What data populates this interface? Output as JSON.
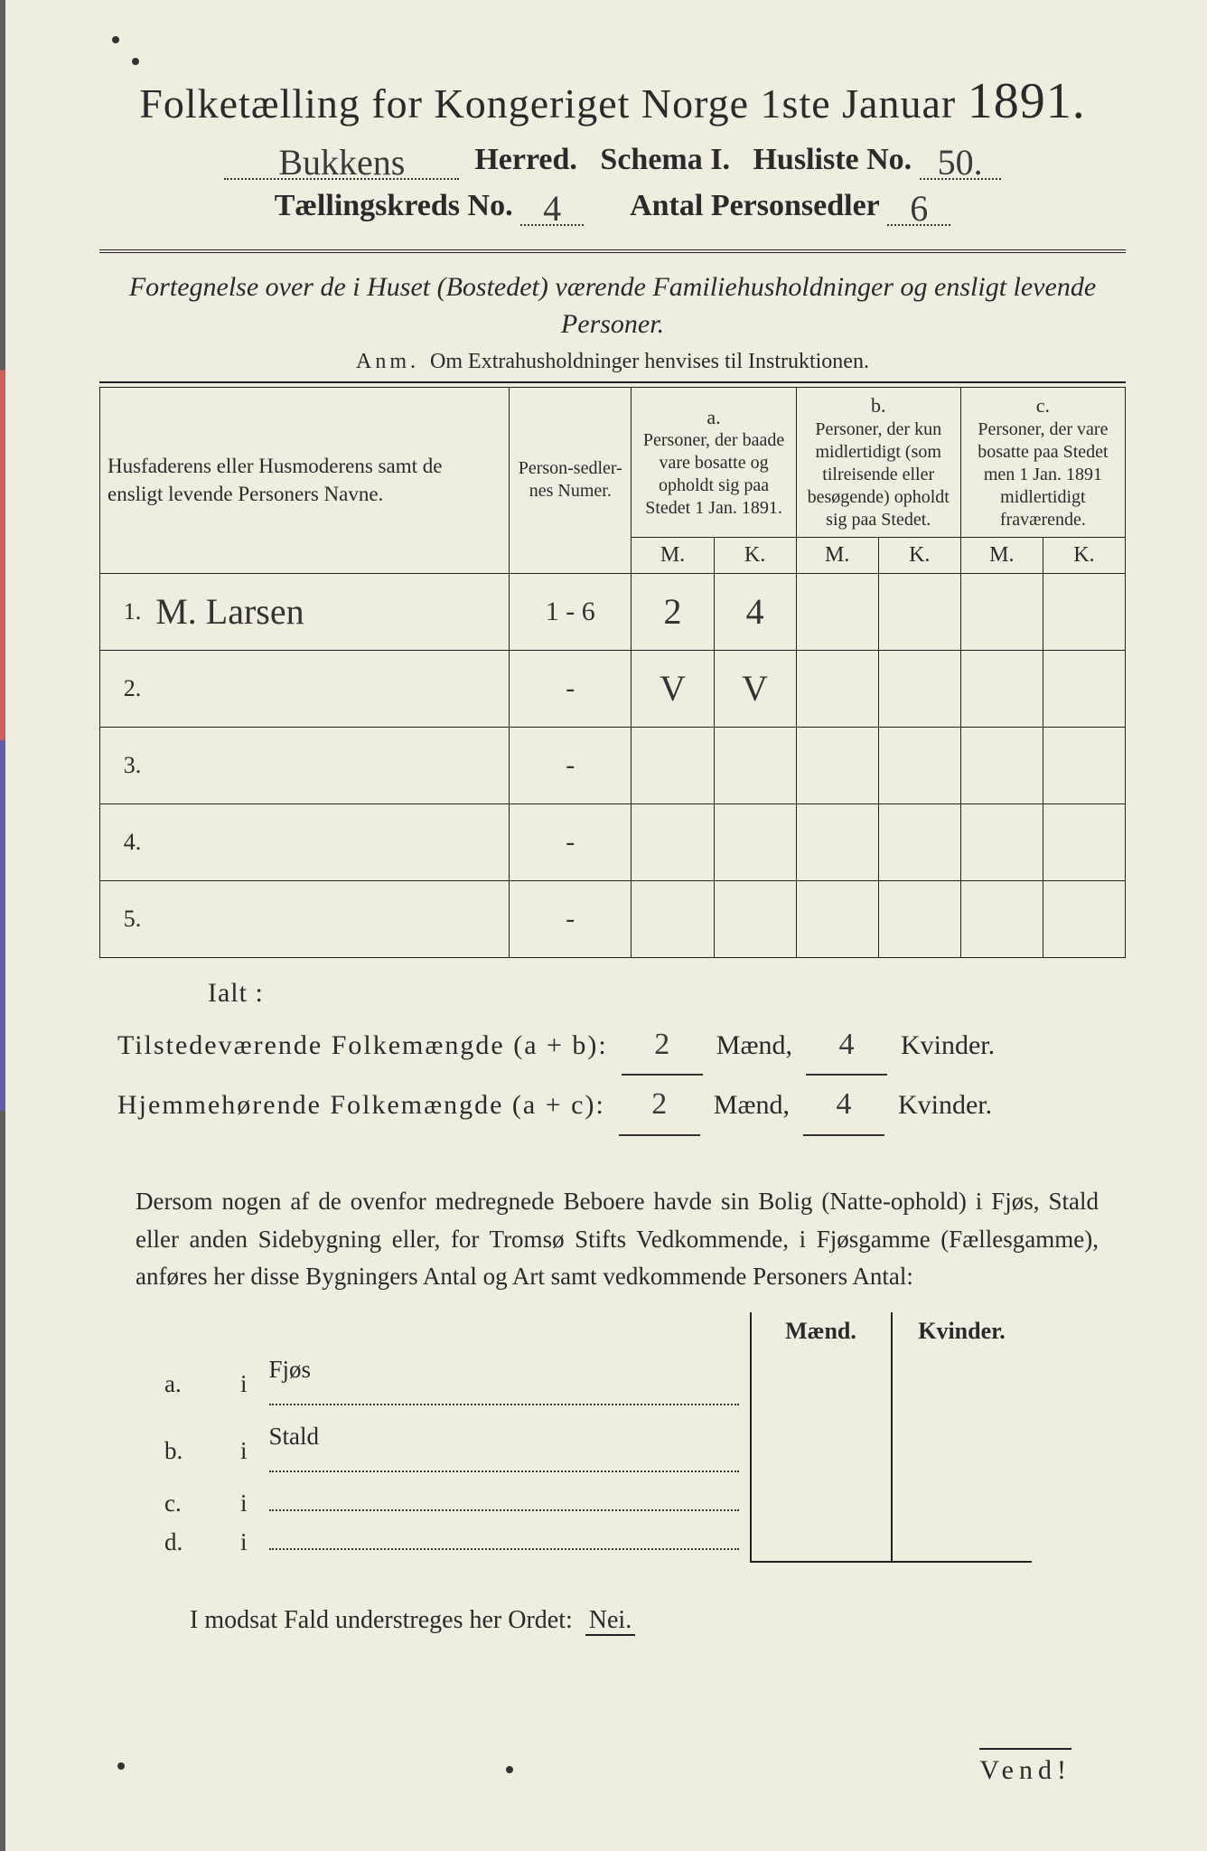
{
  "title_main": "Folketælling for Kongeriget Norge 1ste Januar",
  "title_year": "1891.",
  "herred_value": "Bukkens",
  "herred_label": "Herred.",
  "schema_label": "Schema I.",
  "husliste_label": "Husliste No.",
  "husliste_value": "50.",
  "kreds_label": "Tællingskreds No.",
  "kreds_value": "4",
  "antal_label": "Antal Personsedler",
  "antal_value": "6",
  "subtitle": "Fortegnelse over de i Huset (Bostedet) værende Familiehusholdninger og ensligt levende Personer.",
  "anm_label": "Anm.",
  "anm_text": "Om Extrahusholdninger henvises til Instruktionen.",
  "col_names": "Husfaderens eller Husmoderens samt de ensligt levende Personers Navne.",
  "col_numer": "Person-sedler-nes Numer.",
  "col_a_top": "a.",
  "col_a": "Personer, der baade vare bosatte og opholdt sig paa Stedet 1 Jan. 1891.",
  "col_b_top": "b.",
  "col_b": "Personer, der kun midlertidigt (som tilreisende eller besøgende) opholdt sig paa Stedet.",
  "col_c_top": "c.",
  "col_c": "Personer, der vare bosatte paa Stedet men 1 Jan. 1891 midlertidigt fraværende.",
  "M": "M.",
  "K": "K.",
  "rows": [
    {
      "n": "1.",
      "name": "M. Larsen",
      "numer": "1 - 6",
      "aM": "2",
      "aK": "4",
      "bM": "",
      "bK": "",
      "cM": "",
      "cK": ""
    },
    {
      "n": "2.",
      "name": "",
      "numer": "-",
      "aM": "V",
      "aK": "V",
      "bM": "",
      "bK": "",
      "cM": "",
      "cK": ""
    },
    {
      "n": "3.",
      "name": "",
      "numer": "-",
      "aM": "",
      "aK": "",
      "bM": "",
      "bK": "",
      "cM": "",
      "cK": ""
    },
    {
      "n": "4.",
      "name": "",
      "numer": "-",
      "aM": "",
      "aK": "",
      "bM": "",
      "bK": "",
      "cM": "",
      "cK": ""
    },
    {
      "n": "5.",
      "name": "",
      "numer": "-",
      "aM": "",
      "aK": "",
      "bM": "",
      "bK": "",
      "cM": "",
      "cK": ""
    }
  ],
  "ialt": "Ialt :",
  "tilstede_lbl": "Tilstedeværende Folkemængde (a + b):",
  "hjemme_lbl": "Hjemmehørende Folkemængde (a + c):",
  "maend": "Mænd,",
  "kvinder": "Kvinder.",
  "tot": {
    "ab_m": "2",
    "ab_k": "4",
    "ac_m": "2",
    "ac_k": "4"
  },
  "para": "Dersom nogen af de ovenfor medregnede Beboere havde sin Bolig (Natte-ophold) i Fjøs, Stald eller anden Sidebygning eller, for Tromsø Stifts Vedkommende, i Fjøsgamme (Fællesgamme), anføres her disse Bygningers Antal og Art samt vedkommende Personers Antal:",
  "mk_m": "Mænd.",
  "mk_k": "Kvinder.",
  "small_rows": [
    {
      "l": "a.",
      "w": "i",
      "t": "Fjøs"
    },
    {
      "l": "b.",
      "w": "i",
      "t": "Stald"
    },
    {
      "l": "c.",
      "w": "i",
      "t": ""
    },
    {
      "l": "d.",
      "w": "i",
      "t": ""
    }
  ],
  "nei_pre": "I modsat Fald understreges her Ordet:",
  "nei": "Nei.",
  "vend": "Vend!",
  "colors": {
    "paper": "#f0ece0",
    "ink": "#2a2a2a"
  }
}
